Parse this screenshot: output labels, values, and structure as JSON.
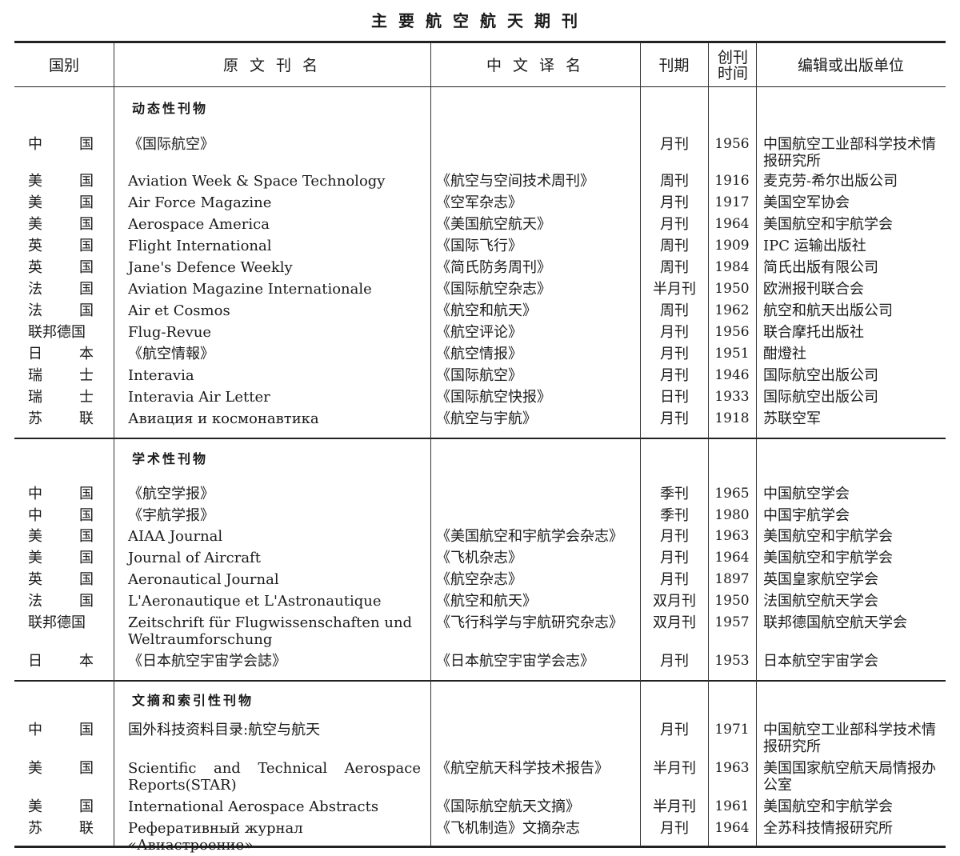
{
  "title": "主要航空航天期刊",
  "headers": {
    "country": "国别",
    "original_title": "原 文 刊 名",
    "chinese_title": "中 文 译 名",
    "frequency": "刊期",
    "founded": "创刊时间",
    "publisher": "编辑或出版单位"
  },
  "sections": [
    {
      "label": "动态性刊物",
      "rows": [
        {
          "country": "中国",
          "original": "《国际航空》",
          "chinese": "",
          "frequency": "月刊",
          "year": "1956",
          "publisher": "中国航空工业部科学技术情报研究所"
        },
        {
          "country": "美国",
          "original": "Aviation Week & Space Technology",
          "chinese": "《航空与空间技术周刊》",
          "frequency": "周刊",
          "year": "1916",
          "publisher": "麦克劳-希尔出版公司"
        },
        {
          "country": "美国",
          "original": "Air Force Magazine",
          "chinese": "《空军杂志》",
          "frequency": "月刊",
          "year": "1917",
          "publisher": "美国空军协会"
        },
        {
          "country": "美国",
          "original": "Aerospace America",
          "chinese": "《美国航空航天》",
          "frequency": "月刊",
          "year": "1964",
          "publisher": "美国航空和宇航学会"
        },
        {
          "country": "英国",
          "original": "Flight International",
          "chinese": "《国际飞行》",
          "frequency": "周刊",
          "year": "1909",
          "publisher": "IPC 运输出版社"
        },
        {
          "country": "英国",
          "original": "Jane's Defence Weekly",
          "chinese": "《简氏防务周刊》",
          "frequency": "周刊",
          "year": "1984",
          "publisher": "简氏出版有限公司"
        },
        {
          "country": "法国",
          "original": "Aviation Magazine Internationale",
          "chinese": "《国际航空杂志》",
          "frequency": "半月刊",
          "year": "1950",
          "publisher": "欧洲报刊联合会"
        },
        {
          "country": "法国",
          "original": "Air et Cosmos",
          "chinese": "《航空和航天》",
          "frequency": "周刊",
          "year": "1962",
          "publisher": "航空和航天出版公司"
        },
        {
          "country": "联邦德国",
          "original": "Flug-Revue",
          "chinese": "《航空评论》",
          "frequency": "月刊",
          "year": "1956",
          "publisher": "联合摩托出版社"
        },
        {
          "country": "日本",
          "original": "《航空情報》",
          "chinese": "《航空情报》",
          "frequency": "月刊",
          "year": "1951",
          "publisher": "酣燈社"
        },
        {
          "country": "瑞士",
          "original": "Interavia",
          "chinese": "《国际航空》",
          "frequency": "月刊",
          "year": "1946",
          "publisher": "国际航空出版公司"
        },
        {
          "country": "瑞士",
          "original": "Interavia Air Letter",
          "chinese": "《国际航空快报》",
          "frequency": "日刊",
          "year": "1933",
          "publisher": "国际航空出版公司"
        },
        {
          "country": "苏联",
          "original": "Авиация и космонавтика",
          "chinese": "《航空与宇航》",
          "frequency": "月刊",
          "year": "1918",
          "publisher": "苏联空军"
        }
      ]
    },
    {
      "label": "学术性刊物",
      "rows": [
        {
          "country": "中国",
          "original": "《航空学报》",
          "chinese": "",
          "frequency": "季刊",
          "year": "1965",
          "publisher": "中国航空学会"
        },
        {
          "country": "中国",
          "original": "《宇航学报》",
          "chinese": "",
          "frequency": "季刊",
          "year": "1980",
          "publisher": "中国宇航学会"
        },
        {
          "country": "美国",
          "original": "AIAA Journal",
          "chinese": "《美国航空和宇航学会杂志》",
          "frequency": "月刊",
          "year": "1963",
          "publisher": "美国航空和宇航学会"
        },
        {
          "country": "美国",
          "original": "Journal of Aircraft",
          "chinese": "《飞机杂志》",
          "frequency": "月刊",
          "year": "1964",
          "publisher": "美国航空和宇航学会"
        },
        {
          "country": "英国",
          "original": "Aeronautical Journal",
          "chinese": "《航空杂志》",
          "frequency": "月刊",
          "year": "1897",
          "publisher": "英国皇家航空学会"
        },
        {
          "country": "法国",
          "original": "L'Aeronautique et L'Astronautique",
          "chinese": "《航空和航天》",
          "frequency": "双月刊",
          "year": "1950",
          "publisher": "法国航空航天学会"
        },
        {
          "country": "联邦德国",
          "original": "Zeitschrift für Flugwissenschaften und Weltraumforschung",
          "chinese": "《飞行科学与宇航研究杂志》",
          "frequency": "双月刊",
          "year": "1957",
          "publisher": "联邦德国航空航天学会"
        },
        {
          "country": "日本",
          "original": "《日本航空宇宙学会誌》",
          "chinese": "《日本航空宇宙学会志》",
          "frequency": "月刊",
          "year": "1953",
          "publisher": "日本航空宇宙学会"
        }
      ]
    },
    {
      "label": "文摘和索引性刊物",
      "rows": [
        {
          "country": "中国",
          "original": "国外科技资料目录:航空与航天",
          "chinese": "",
          "frequency": "月刊",
          "year": "1971",
          "publisher": "中国航空工业部科学技术情报研究所"
        },
        {
          "country": "美国",
          "original": "Scientific and Technical Aerospace Reports(STAR)",
          "chinese": "《航空航天科学技术报告》",
          "frequency": "半月刊",
          "year": "1963",
          "publisher": "美国国家航空航天局情报办公室"
        },
        {
          "country": "美国",
          "original": "International Aerospace Abstracts",
          "chinese": "《国际航空航天文摘》",
          "frequency": "半月刊",
          "year": "1961",
          "publisher": "美国航空和宇航学会"
        },
        {
          "country": "苏联",
          "original": "Реферативный журнал «Авиастроение»",
          "chinese": "《飞机制造》文摘杂志",
          "frequency": "月刊",
          "year": "1964",
          "publisher": "全苏科技情报研究所"
        }
      ]
    }
  ]
}
